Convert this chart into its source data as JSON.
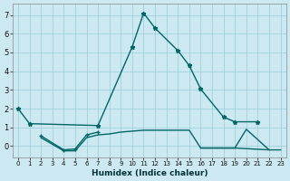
{
  "xlabel": "Humidex (Indice chaleur)",
  "background_color": "#cce8f0",
  "grid_color": "#99ccd8",
  "line_color": "#006666",
  "xlim": [
    -0.5,
    23.5
  ],
  "ylim": [
    -0.6,
    7.6
  ],
  "xticks": [
    0,
    1,
    2,
    3,
    4,
    5,
    6,
    7,
    8,
    9,
    10,
    11,
    12,
    13,
    14,
    15,
    16,
    17,
    18,
    19,
    20,
    21,
    22,
    23
  ],
  "yticks": [
    0,
    1,
    2,
    3,
    4,
    5,
    6,
    7
  ],
  "series0_x": [
    0,
    1,
    7,
    10,
    11,
    12,
    14,
    15,
    16,
    18,
    19,
    21
  ],
  "series0_y": [
    2.0,
    1.2,
    1.1,
    5.3,
    7.1,
    6.3,
    5.1,
    4.3,
    3.05,
    1.55,
    1.3,
    1.3
  ],
  "series1_x": [
    2,
    4,
    5,
    6,
    7
  ],
  "series1_y": [
    0.55,
    -0.2,
    -0.15,
    0.6,
    0.75
  ],
  "series2_x": [
    2,
    4,
    5,
    6,
    7,
    8,
    9,
    10,
    11,
    12,
    13,
    14,
    15,
    16,
    17,
    18,
    19,
    22
  ],
  "series2_y": [
    0.45,
    -0.25,
    -0.25,
    0.45,
    0.6,
    0.65,
    0.75,
    0.8,
    0.85,
    0.85,
    0.85,
    0.85,
    0.85,
    -0.1,
    -0.1,
    -0.1,
    -0.1,
    -0.2
  ],
  "series3_x": [
    16,
    17,
    18,
    19,
    20,
    22,
    23
  ],
  "series3_y": [
    -0.1,
    -0.1,
    -0.1,
    -0.1,
    0.9,
    -0.2,
    -0.2
  ]
}
